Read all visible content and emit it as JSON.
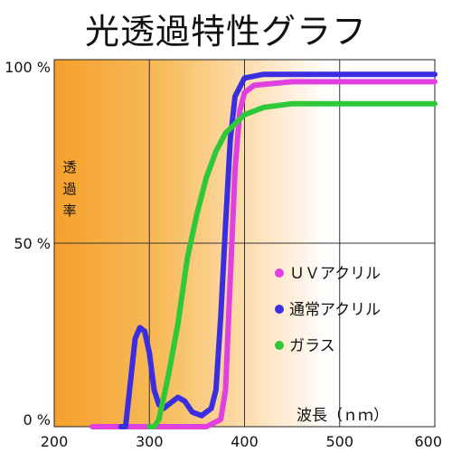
{
  "chart_data": {
    "type": "line",
    "title": "光透過特性グラフ",
    "xlabel": "波長（ｎｍ）",
    "ylabel": "透過率",
    "xlim": [
      200,
      600
    ],
    "ylim": [
      0,
      100
    ],
    "x_ticks": [
      "200",
      "300",
      "400",
      "500",
      "600"
    ],
    "y_ticks": [
      "0 %",
      "50 %",
      "100 %"
    ],
    "grid": true,
    "legend_position": "right",
    "series": [
      {
        "name": "ＵＶアクリル",
        "color": "#e040e0",
        "points": [
          [
            240,
            0
          ],
          [
            360,
            0
          ],
          [
            375,
            2
          ],
          [
            380,
            10
          ],
          [
            385,
            40
          ],
          [
            390,
            70
          ],
          [
            395,
            86
          ],
          [
            400,
            91
          ],
          [
            410,
            93
          ],
          [
            450,
            94
          ],
          [
            500,
            94
          ],
          [
            600,
            94
          ]
        ]
      },
      {
        "name": "通常アクリル",
        "color": "#3a2ee0",
        "points": [
          [
            270,
            0
          ],
          [
            275,
            0
          ],
          [
            280,
            12
          ],
          [
            285,
            24
          ],
          [
            290,
            27
          ],
          [
            295,
            26
          ],
          [
            300,
            20
          ],
          [
            305,
            10
          ],
          [
            310,
            6
          ],
          [
            315,
            5
          ],
          [
            320,
            6
          ],
          [
            330,
            8
          ],
          [
            337,
            7
          ],
          [
            345,
            4
          ],
          [
            355,
            3
          ],
          [
            365,
            5
          ],
          [
            370,
            10
          ],
          [
            375,
            30
          ],
          [
            380,
            55
          ],
          [
            385,
            78
          ],
          [
            390,
            90
          ],
          [
            400,
            95
          ],
          [
            420,
            96
          ],
          [
            500,
            96
          ],
          [
            600,
            96
          ]
        ]
      },
      {
        "name": "ガラス",
        "color": "#2ec838",
        "points": [
          [
            300,
            0
          ],
          [
            305,
            0
          ],
          [
            310,
            2
          ],
          [
            320,
            14
          ],
          [
            330,
            28
          ],
          [
            340,
            46
          ],
          [
            350,
            58
          ],
          [
            360,
            68
          ],
          [
            370,
            75
          ],
          [
            380,
            80
          ],
          [
            400,
            85
          ],
          [
            420,
            87
          ],
          [
            450,
            88
          ],
          [
            500,
            88
          ],
          [
            600,
            88
          ]
        ]
      }
    ]
  }
}
